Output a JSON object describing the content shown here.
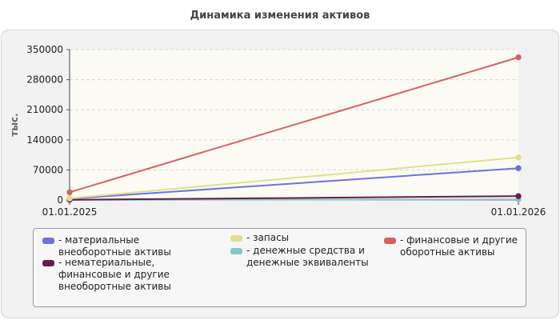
{
  "chart_data": {
    "type": "line",
    "title": "Динамика изменения активов",
    "ylabel": "тыс.",
    "x": [
      "01.01.2025",
      "01.01.2026"
    ],
    "ylim": [
      0,
      350000
    ],
    "yticks": [
      "350000",
      "280000",
      "210000",
      "140000",
      "70000",
      "0"
    ],
    "ytick_values": [
      350000,
      280000,
      210000,
      140000,
      70000,
      0
    ],
    "grid": true,
    "legend_placement": "bottom",
    "series": [
      {
        "name": "- материальные внеоборотные активы",
        "values": [
          3000,
          74000
        ],
        "color": "#7070e0"
      },
      {
        "name": "- запасы",
        "values": [
          4000,
          99000
        ],
        "color": "#e0e08a"
      },
      {
        "name": "- финансовые и другие оборотные активы",
        "values": [
          18000,
          332000
        ],
        "color": "#d86060"
      },
      {
        "name": "- нематериальные, финансовые и другие внеоборотные активы",
        "values": [
          500,
          9000
        ],
        "color": "#6b1b4b"
      },
      {
        "name": "- денежные средства и денежные эквиваленты",
        "values": [
          200,
          1500
        ],
        "color": "#88c6c6"
      }
    ]
  }
}
